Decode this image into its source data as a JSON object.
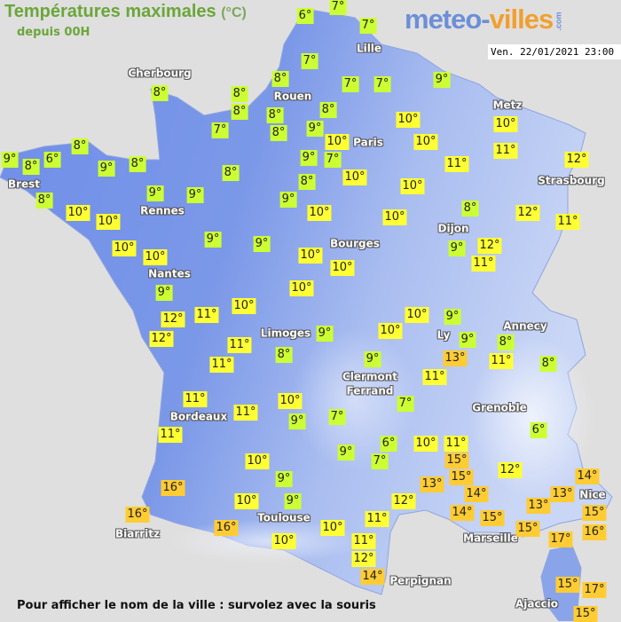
{
  "header": {
    "title": "Températures maximales",
    "unit": "(°C)",
    "subtitle": "depuis 00H"
  },
  "logo": {
    "part1": "meteo-",
    "part2": "villes",
    "suffix": ".com"
  },
  "timestamp": "Ven. 22/01/2021 23:00",
  "footer": "Pour afficher le nom de la ville : survolez avec la souris",
  "colors": {
    "cool": "#ccff33",
    "mild": "#ffff33",
    "warm": "#ffcc33",
    "land_west": "#6f8ee8",
    "land_east": "#b4c6f2",
    "sea": "#e0dfdf"
  },
  "cities": [
    "Cherbourg",
    "Rouen",
    "Lille",
    "Paris",
    "Metz",
    "Strasbourg",
    "Brest",
    "Rennes",
    "Dijon",
    "Bourges",
    "Nantes",
    "Limoges",
    "Ly",
    "Annecy",
    "Clermont",
    "Ferrand",
    "Grenoble",
    "Bordeaux",
    "Toulouse",
    "Biarritz",
    "Marseille",
    "Nice",
    "Perpignan",
    "Ajaccio"
  ],
  "temperatures": [
    "6°",
    "7°",
    "7°",
    "7°",
    "8°",
    "7°",
    "7°",
    "9°",
    "8°",
    "8°",
    "8°",
    "8°",
    "8°",
    "7°",
    "8°",
    "9°",
    "10°",
    "10°",
    "10°",
    "10°",
    "11°",
    "11°",
    "12°",
    "8°",
    "9°",
    "8°",
    "6°",
    "9°",
    "8°",
    "9°",
    "7°",
    "10°",
    "8°",
    "8°",
    "10°",
    "8°",
    "9°",
    "9°",
    "9°",
    "10°",
    "10°",
    "10°",
    "10°",
    "8°",
    "12°",
    "11°",
    "10°",
    "10°",
    "9°",
    "9°",
    "10°",
    "10°",
    "9°",
    "12°",
    "11°",
    "9°",
    "10°",
    "12°",
    "12°",
    "11°",
    "10°",
    "11°",
    "11°",
    "9°",
    "8°",
    "10°",
    "9°",
    "10°",
    "9°",
    "13°",
    "8°",
    "11°",
    "8°",
    "9°",
    "11°",
    "11°",
    "11°",
    "10°",
    "9°",
    "7°",
    "7°",
    "11°",
    "6°",
    "9°",
    "6°",
    "7°",
    "10°",
    "11°",
    "15°",
    "12°",
    "10°",
    "16°",
    "9°",
    "13°",
    "15°",
    "14°",
    "14°",
    "15°",
    "14°",
    "13°",
    "9°",
    "10°",
    "12°",
    "13°",
    "15°",
    "16°",
    "16°",
    "11°",
    "15°",
    "17°",
    "16°",
    "10°",
    "10°",
    "11°",
    "12°",
    "14°",
    "15°",
    "17°",
    "15°"
  ]
}
